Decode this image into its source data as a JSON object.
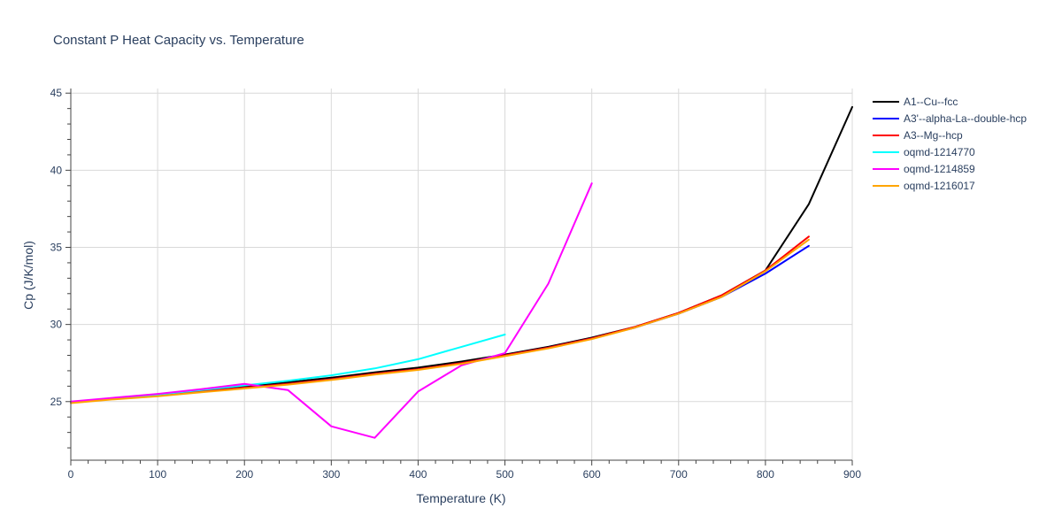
{
  "chart_data": {
    "type": "line",
    "title": "Constant P Heat Capacity vs. Temperature",
    "xlabel": "Temperature (K)",
    "ylabel": "Cp (J/K/mol)",
    "xlim": [
      0,
      900
    ],
    "ylim": [
      21.2,
      45.3
    ],
    "x_ticks": [
      0,
      100,
      200,
      300,
      400,
      500,
      600,
      700,
      800,
      900
    ],
    "y_ticks": [
      25,
      30,
      35,
      40,
      45
    ],
    "grid": true,
    "legend_position": "top-right",
    "series": [
      {
        "name": "A1--Cu--fcc",
        "color": "#000000",
        "x": [
          0,
          50,
          100,
          150,
          200,
          250,
          300,
          350,
          400,
          450,
          500,
          550,
          600,
          650,
          700,
          750,
          800,
          850,
          900
        ],
        "y": [
          24.95,
          25.2,
          25.45,
          25.7,
          25.95,
          26.25,
          26.55,
          26.9,
          27.2,
          27.6,
          28.05,
          28.55,
          29.15,
          29.85,
          30.75,
          31.9,
          33.5,
          37.8,
          44.1
        ]
      },
      {
        "name": "A3'--alpha-La--double-hcp",
        "color": "#0000ff",
        "x": [
          0,
          50,
          100,
          150,
          200,
          250,
          300,
          350,
          400,
          450,
          500,
          550,
          600,
          650,
          700,
          750,
          800,
          850
        ],
        "y": [
          24.95,
          25.2,
          25.4,
          25.65,
          25.9,
          26.15,
          26.45,
          26.8,
          27.1,
          27.5,
          28.0,
          28.5,
          29.1,
          29.8,
          30.7,
          31.8,
          33.3,
          35.1
        ]
      },
      {
        "name": "A3--Mg--hcp",
        "color": "#ff0000",
        "x": [
          0,
          50,
          100,
          150,
          200,
          250,
          300,
          350,
          400,
          450,
          500,
          550,
          600,
          650,
          700,
          750,
          800,
          850
        ],
        "y": [
          24.95,
          25.2,
          25.4,
          25.65,
          25.9,
          26.15,
          26.45,
          26.8,
          27.1,
          27.5,
          28.0,
          28.5,
          29.1,
          29.85,
          30.75,
          31.9,
          33.5,
          35.7
        ]
      },
      {
        "name": "oqmd-1214770",
        "color": "#00ffff",
        "x": [
          0,
          50,
          100,
          150,
          200,
          250,
          300,
          350,
          400,
          450,
          500
        ],
        "y": [
          24.95,
          25.2,
          25.45,
          25.75,
          26.05,
          26.35,
          26.7,
          27.15,
          27.75,
          28.55,
          29.35
        ]
      },
      {
        "name": "oqmd-1214859",
        "color": "#ff00ff",
        "x": [
          0,
          50,
          100,
          150,
          200,
          250,
          300,
          350,
          400,
          450,
          500,
          550,
          600
        ],
        "y": [
          25.0,
          25.25,
          25.5,
          25.8,
          26.15,
          25.75,
          23.4,
          22.65,
          25.65,
          27.35,
          28.15,
          32.65,
          39.15
        ]
      },
      {
        "name": "oqmd-1216017",
        "color": "#ffa500",
        "x": [
          0,
          50,
          100,
          150,
          200,
          250,
          300,
          350,
          400,
          450,
          500,
          550,
          600,
          650,
          700,
          750,
          800,
          850
        ],
        "y": [
          24.9,
          25.15,
          25.35,
          25.6,
          25.85,
          26.1,
          26.4,
          26.75,
          27.05,
          27.45,
          27.95,
          28.45,
          29.05,
          29.8,
          30.7,
          31.8,
          33.45,
          35.5
        ]
      }
    ]
  }
}
